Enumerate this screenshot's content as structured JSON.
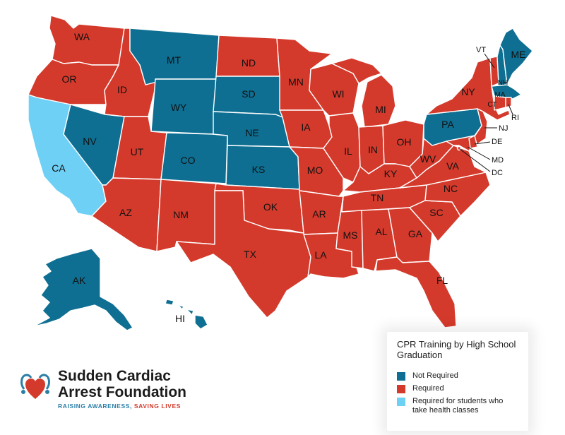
{
  "colors": {
    "not_required": "#0e6f92",
    "required": "#d43a2c",
    "health_classes": "#6fd0f6"
  },
  "legend": {
    "title": "CPR Training by High School Graduation",
    "items": [
      {
        "key": "not_required",
        "label": "Not Required"
      },
      {
        "key": "required",
        "label": "Required"
      },
      {
        "key": "health_classes",
        "label": "Required for students who take health classes"
      }
    ]
  },
  "states": {
    "WA": "required",
    "OR": "required",
    "CA": "health_classes",
    "ID": "required",
    "NV": "not_required",
    "MT": "not_required",
    "WY": "not_required",
    "UT": "required",
    "AZ": "required",
    "CO": "not_required",
    "NM": "required",
    "ND": "required",
    "SD": "not_required",
    "NE": "not_required",
    "KS": "not_required",
    "OK": "required",
    "TX": "required",
    "MN": "required",
    "IA": "required",
    "MO": "required",
    "AR": "required",
    "LA": "required",
    "WI": "required",
    "IL": "required",
    "MI": "required",
    "IN": "required",
    "OH": "required",
    "KY": "required",
    "TN": "required",
    "MS": "required",
    "AL": "required",
    "GA": "required",
    "FL": "required",
    "SC": "required",
    "NC": "required",
    "VA": "required",
    "WV": "required",
    "PA": "not_required",
    "NY": "required",
    "VT": "required",
    "NH": "not_required",
    "ME": "not_required",
    "MA": "not_required",
    "CT": "required",
    "RI": "required",
    "NJ": "required",
    "DE": "required",
    "MD": "required",
    "DC": "required",
    "AK": "not_required",
    "HI": "not_required"
  },
  "labels": {
    "WA": "WA",
    "OR": "OR",
    "CA": "CA",
    "ID": "ID",
    "NV": "NV",
    "MT": "MT",
    "WY": "WY",
    "UT": "UT",
    "AZ": "AZ",
    "CO": "CO",
    "NM": "NM",
    "ND": "ND",
    "SD": "SD",
    "NE": "NE",
    "KS": "KS",
    "OK": "OK",
    "TX": "TX",
    "MN": "MN",
    "IA": "IA",
    "MO": "MO",
    "AR": "AR",
    "LA": "LA",
    "WI": "WI",
    "IL": "IL",
    "MI": "MI",
    "IN": "IN",
    "OH": "OH",
    "KY": "KY",
    "TN": "TN",
    "MS": "MS",
    "AL": "AL",
    "GA": "GA",
    "FL": "FL",
    "SC": "SC",
    "NC": "NC",
    "VA": "VA",
    "WV": "WV",
    "PA": "PA",
    "NY": "NY",
    "VT": "VT",
    "NH": "NH",
    "ME": "ME",
    "MA": "MA",
    "CT": "CT",
    "RI": "RI",
    "NJ": "NJ",
    "DE": "DE",
    "MD": "MD",
    "DC": "DC",
    "AK": "AK",
    "HI": "HI"
  },
  "logo": {
    "line1": "Sudden Cardiac",
    "line2": "Arrest Foundation",
    "tagline_a": "RAISING AWARENESS, ",
    "tagline_b": "SAVING LIVES"
  }
}
